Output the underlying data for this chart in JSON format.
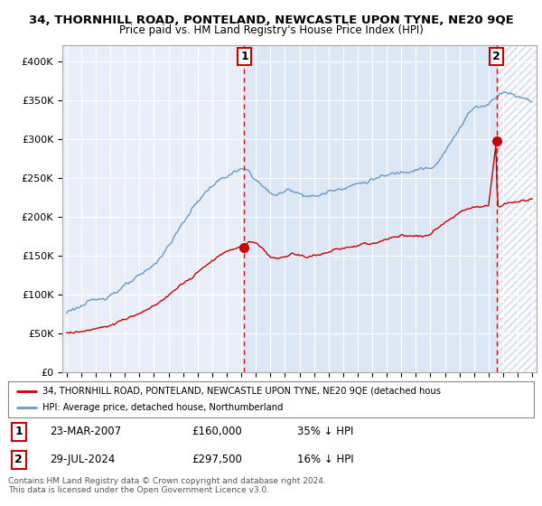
{
  "title1": "34, THORNHILL ROAD, PONTELAND, NEWCASTLE UPON TYNE, NE20 9QE",
  "title2": "Price paid vs. HM Land Registry's House Price Index (HPI)",
  "legend_line1": "34, THORNHILL ROAD, PONTELAND, NEWCASTLE UPON TYNE, NE20 9QE (detached hous",
  "legend_line2": "HPI: Average price, detached house, Northumberland",
  "footnote": "Contains HM Land Registry data © Crown copyright and database right 2024.\nThis data is licensed under the Open Government Licence v3.0.",
  "marker1_date": "23-MAR-2007",
  "marker1_price": "£160,000",
  "marker1_hpi": "35% ↓ HPI",
  "marker2_date": "29-JUL-2024",
  "marker2_price": "£297,500",
  "marker2_hpi": "16% ↓ HPI",
  "hpi_color": "#6699cc",
  "price_color": "#cc0000",
  "background_color": "#e8eef8",
  "shaded_color": "#dce6f5",
  "hatch_color": "#c0c8d8",
  "ylim": [
    0,
    420000
  ],
  "yticks": [
    0,
    50000,
    100000,
    150000,
    200000,
    250000,
    300000,
    350000,
    400000
  ],
  "ytick_labels": [
    "£0",
    "£50K",
    "£100K",
    "£150K",
    "£200K",
    "£250K",
    "£300K",
    "£350K",
    "£400K"
  ],
  "xlim_start": 1994.7,
  "xlim_end": 2027.3,
  "sale1_x": 2007.21,
  "sale1_y": 160000,
  "sale2_x": 2024.54,
  "sale2_y": 297500,
  "hpi_knots_x": [
    1995,
    1996,
    1997,
    1998,
    1999,
    2000,
    2001,
    2002,
    2003,
    2004,
    2005,
    2006,
    2007,
    2007.5,
    2008,
    2008.5,
    2009,
    2009.5,
    2010,
    2010.5,
    2011,
    2011.5,
    2012,
    2012.5,
    2013,
    2013.5,
    2014,
    2014.5,
    2015,
    2015.5,
    2016,
    2016.5,
    2017,
    2017.5,
    2018,
    2018.5,
    2019,
    2019.5,
    2020,
    2020.5,
    2021,
    2021.5,
    2022,
    2022.5,
    2023,
    2023.5,
    2024,
    2024.5,
    2025,
    2025.5,
    2026,
    2026.5,
    2027
  ],
  "hpi_knots_y": [
    80000,
    85000,
    92000,
    100000,
    110000,
    122000,
    138000,
    162000,
    192000,
    220000,
    240000,
    252000,
    260000,
    258000,
    248000,
    238000,
    230000,
    228000,
    232000,
    235000,
    230000,
    228000,
    225000,
    228000,
    232000,
    235000,
    238000,
    240000,
    242000,
    244000,
    248000,
    250000,
    252000,
    255000,
    258000,
    260000,
    262000,
    263000,
    260000,
    268000,
    282000,
    298000,
    315000,
    330000,
    340000,
    342000,
    345000,
    355000,
    362000,
    358000,
    355000,
    352000,
    350000
  ],
  "prop_knots_x": [
    1995,
    1996,
    1997,
    1998,
    1999,
    2000,
    2001,
    2002,
    2003,
    2004,
    2005,
    2006,
    2007,
    2007.21,
    2007.5,
    2008,
    2008.5,
    2009,
    2009.5,
    2010,
    2010.5,
    2011,
    2011.5,
    2012,
    2012.5,
    2013,
    2013.5,
    2014,
    2014.5,
    2015,
    2015.5,
    2016,
    2016.5,
    2017,
    2017.5,
    2018,
    2018.5,
    2019,
    2019.5,
    2020,
    2020.5,
    2021,
    2021.5,
    2022,
    2022.5,
    2023,
    2023.5,
    2024,
    2024.54,
    2024.6,
    2025,
    2025.5,
    2026,
    2026.5,
    2027
  ],
  "prop_knots_y": [
    50000,
    52000,
    56000,
    60000,
    67000,
    75000,
    85000,
    98000,
    112000,
    128000,
    143000,
    155000,
    162000,
    160000,
    168000,
    165000,
    158000,
    148000,
    145000,
    148000,
    152000,
    150000,
    148000,
    150000,
    152000,
    155000,
    157000,
    158000,
    160000,
    162000,
    164000,
    166000,
    168000,
    170000,
    172000,
    174000,
    175000,
    176000,
    174000,
    178000,
    185000,
    192000,
    198000,
    205000,
    210000,
    212000,
    213000,
    215000,
    297500,
    212000,
    215000,
    218000,
    220000,
    222000,
    224000
  ]
}
